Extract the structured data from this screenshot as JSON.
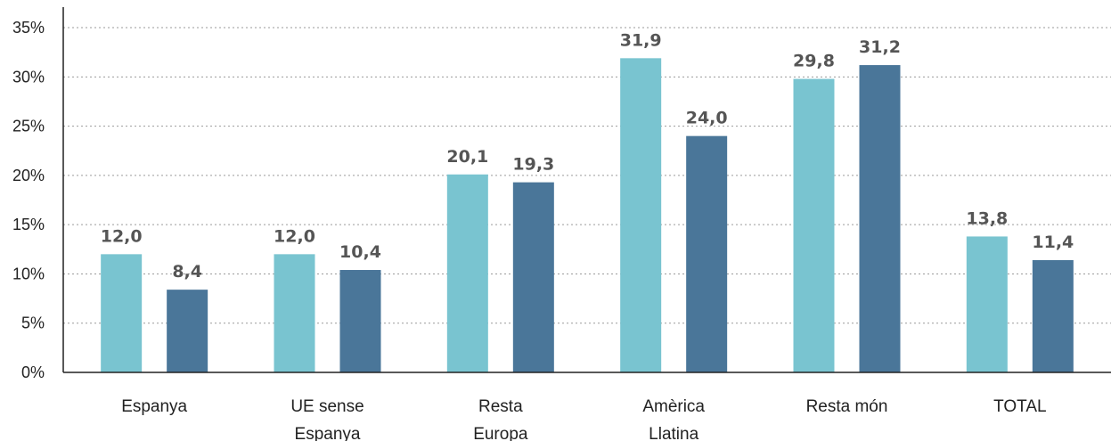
{
  "chart_data": {
    "type": "bar",
    "categories": [
      [
        "Espanya"
      ],
      [
        "UE sense",
        "Espanya"
      ],
      [
        "Resta",
        "Europa"
      ],
      [
        "Amèrica",
        "Llatina"
      ],
      [
        "Resta món"
      ],
      [
        "TOTAL"
      ]
    ],
    "series": [
      {
        "color": "#79c4d0",
        "values": [
          12.0,
          12.0,
          20.1,
          31.9,
          29.8,
          13.8
        ],
        "labels": [
          "12,0",
          "12,0",
          "20,1",
          "31,9",
          "29,8",
          "13,8"
        ]
      },
      {
        "color": "#4a7699",
        "values": [
          8.4,
          10.4,
          19.3,
          24.0,
          31.2,
          11.4
        ],
        "labels": [
          "8,4",
          "10,4",
          "19,3",
          "24,0",
          "31,2",
          "11,4"
        ]
      }
    ],
    "yticks": [
      {
        "value": 0,
        "label": "0%"
      },
      {
        "value": 5,
        "label": "5%"
      },
      {
        "value": 10,
        "label": "10%"
      },
      {
        "value": 15,
        "label": "15%"
      },
      {
        "value": 20,
        "label": "20%"
      },
      {
        "value": 25,
        "label": "25%"
      },
      {
        "value": 30,
        "label": "30%"
      },
      {
        "value": 35,
        "label": "35%"
      }
    ],
    "ylim": [
      0,
      36
    ],
    "grid": true,
    "legend": "none",
    "title": "",
    "xlabel": "",
    "ylabel": ""
  }
}
